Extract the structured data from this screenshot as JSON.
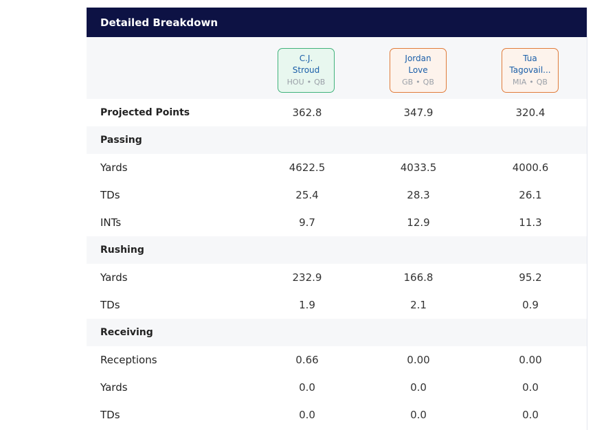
{
  "header": {
    "title": "Detailed Breakdown"
  },
  "players": [
    {
      "name_line1": "C.J.",
      "name_line2": "Stroud",
      "team": "HOU",
      "position": "QB",
      "color": "#3fb27a"
    },
    {
      "name_line1": "Jordan",
      "name_line2": "Love",
      "team": "GB",
      "position": "QB",
      "color": "#e07b39"
    },
    {
      "name_line1": "Tua",
      "name_line2": "Tagovail...",
      "team": "MIA",
      "position": "QB",
      "color": "#e07b39"
    }
  ],
  "meta_separator": "•",
  "projected": {
    "label": "Projected Points",
    "values": [
      "362.8",
      "347.9",
      "320.4"
    ]
  },
  "passing": {
    "section": "Passing",
    "yards": {
      "label": "Yards",
      "values": [
        "4622.5",
        "4033.5",
        "4000.6"
      ]
    },
    "tds": {
      "label": "TDs",
      "values": [
        "25.4",
        "28.3",
        "26.1"
      ]
    },
    "ints": {
      "label": "INTs",
      "values": [
        "9.7",
        "12.9",
        "11.3"
      ]
    }
  },
  "rushing": {
    "section": "Rushing",
    "yards": {
      "label": "Yards",
      "values": [
        "232.9",
        "166.8",
        "95.2"
      ]
    },
    "tds": {
      "label": "TDs",
      "values": [
        "1.9",
        "2.1",
        "0.9"
      ]
    }
  },
  "receiving": {
    "section": "Receiving",
    "receptions": {
      "label": "Receptions",
      "values": [
        "0.66",
        "0.00",
        "0.00"
      ]
    },
    "yards": {
      "label": "Yards",
      "values": [
        "0.0",
        "0.0",
        "0.0"
      ]
    },
    "tds": {
      "label": "TDs",
      "values": [
        "0.0",
        "0.0",
        "0.0"
      ]
    }
  }
}
